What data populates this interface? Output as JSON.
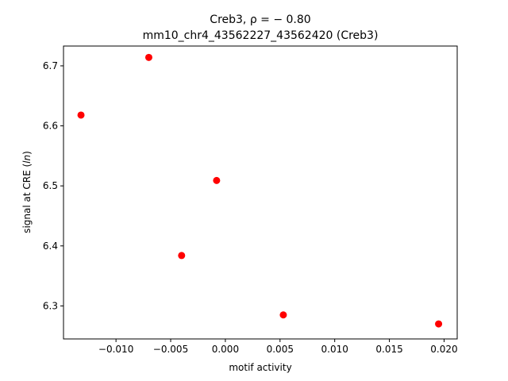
{
  "chart_data": {
    "type": "scatter",
    "title_line1": "Creb3, ρ = − 0.80",
    "title_line2": "mm10_chr4_43562227_43562420 (Creb3)",
    "xlabel": "motif activity",
    "ylabel": "signal at CRE (ln)",
    "xlim": [
      -0.0148,
      0.0212
    ],
    "ylim": [
      6.245,
      6.733
    ],
    "xticks": [
      -0.01,
      -0.005,
      0.0,
      0.005,
      0.01,
      0.015,
      0.02
    ],
    "xtick_labels": [
      "−0.010",
      "−0.005",
      "0.000",
      "0.005",
      "0.010",
      "0.015",
      "0.020"
    ],
    "yticks": [
      6.3,
      6.4,
      6.5,
      6.6,
      6.7
    ],
    "ytick_labels": [
      "6.3",
      "6.4",
      "6.5",
      "6.6",
      "6.7"
    ],
    "grid": false,
    "marker_color": "#ff0000",
    "points": [
      {
        "x": -0.0132,
        "y": 6.618
      },
      {
        "x": -0.007,
        "y": 6.714
      },
      {
        "x": -0.004,
        "y": 6.384
      },
      {
        "x": -0.0008,
        "y": 6.509
      },
      {
        "x": 0.0053,
        "y": 6.285
      },
      {
        "x": 0.0195,
        "y": 6.27
      }
    ]
  }
}
